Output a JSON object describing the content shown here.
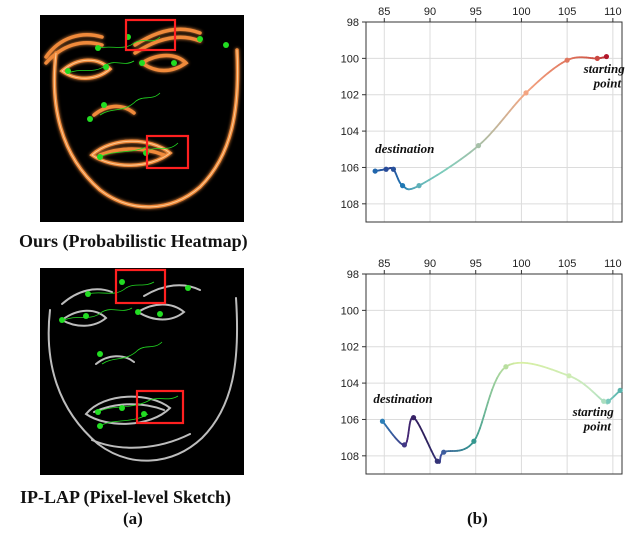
{
  "captions": {
    "top": "Ours (Probabilistic Heatmap)",
    "bottom": "IP-LAP (Pixel-level Sketch)",
    "a": "(a)",
    "b": "(b)"
  },
  "colors": {
    "heat_line": "#f08a3a",
    "heat_core": "#ffd9a8",
    "sketch_line": "#bdbdbd",
    "landmark": "#22dd22",
    "box": "#ff2020"
  },
  "chart_data": [
    {
      "type": "line",
      "title": "",
      "xlim": [
        83,
        111
      ],
      "ylim": [
        98,
        109
      ],
      "y_inverted": true,
      "xticks": [
        85,
        90,
        95,
        100,
        105,
        110
      ],
      "yticks": [
        98,
        100,
        102,
        104,
        106,
        108
      ],
      "x_axis_position": "top",
      "grid": true,
      "colormap": "plasma-like (blue to orange to red)",
      "points": [
        {
          "x": 109.3,
          "y": 99.9
        },
        {
          "x": 108.3,
          "y": 100.0
        },
        {
          "x": 105.0,
          "y": 100.1
        },
        {
          "x": 100.5,
          "y": 101.9
        },
        {
          "x": 95.3,
          "y": 104.8
        },
        {
          "x": 88.8,
          "y": 107.0
        },
        {
          "x": 87.0,
          "y": 107.0
        },
        {
          "x": 86.0,
          "y": 106.1
        },
        {
          "x": 85.2,
          "y": 106.1
        },
        {
          "x": 84.0,
          "y": 106.2
        }
      ],
      "annotations": [
        {
          "text": "destination",
          "x": 84.0,
          "y": 105.2
        },
        {
          "text": "starting",
          "x": 106.8,
          "y": 100.8
        },
        {
          "text": "point",
          "x": 107.9,
          "y": 101.6
        }
      ]
    },
    {
      "type": "line",
      "title": "",
      "xlim": [
        83,
        111
      ],
      "ylim": [
        98,
        109
      ],
      "y_inverted": true,
      "xticks": [
        85,
        90,
        95,
        100,
        105,
        110
      ],
      "yticks": [
        98,
        100,
        102,
        104,
        106,
        108
      ],
      "x_axis_position": "top",
      "grid": true,
      "colormap": "viridis-like (yellow-green to teal to dark purple)",
      "points": [
        {
          "x": 110.8,
          "y": 104.4
        },
        {
          "x": 109.5,
          "y": 105.0
        },
        {
          "x": 109.0,
          "y": 105.0
        },
        {
          "x": 105.2,
          "y": 103.6
        },
        {
          "x": 98.3,
          "y": 103.1
        },
        {
          "x": 94.8,
          "y": 107.2
        },
        {
          "x": 91.5,
          "y": 107.8
        },
        {
          "x": 90.8,
          "y": 108.3
        },
        {
          "x": 88.2,
          "y": 105.9
        },
        {
          "x": 87.2,
          "y": 107.4
        },
        {
          "x": 84.8,
          "y": 106.1
        }
      ],
      "annotations": [
        {
          "text": "destination",
          "x": 83.8,
          "y": 105.1
        },
        {
          "text": "starting",
          "x": 105.6,
          "y": 105.8
        },
        {
          "text": "point",
          "x": 106.8,
          "y": 106.6
        }
      ]
    }
  ]
}
